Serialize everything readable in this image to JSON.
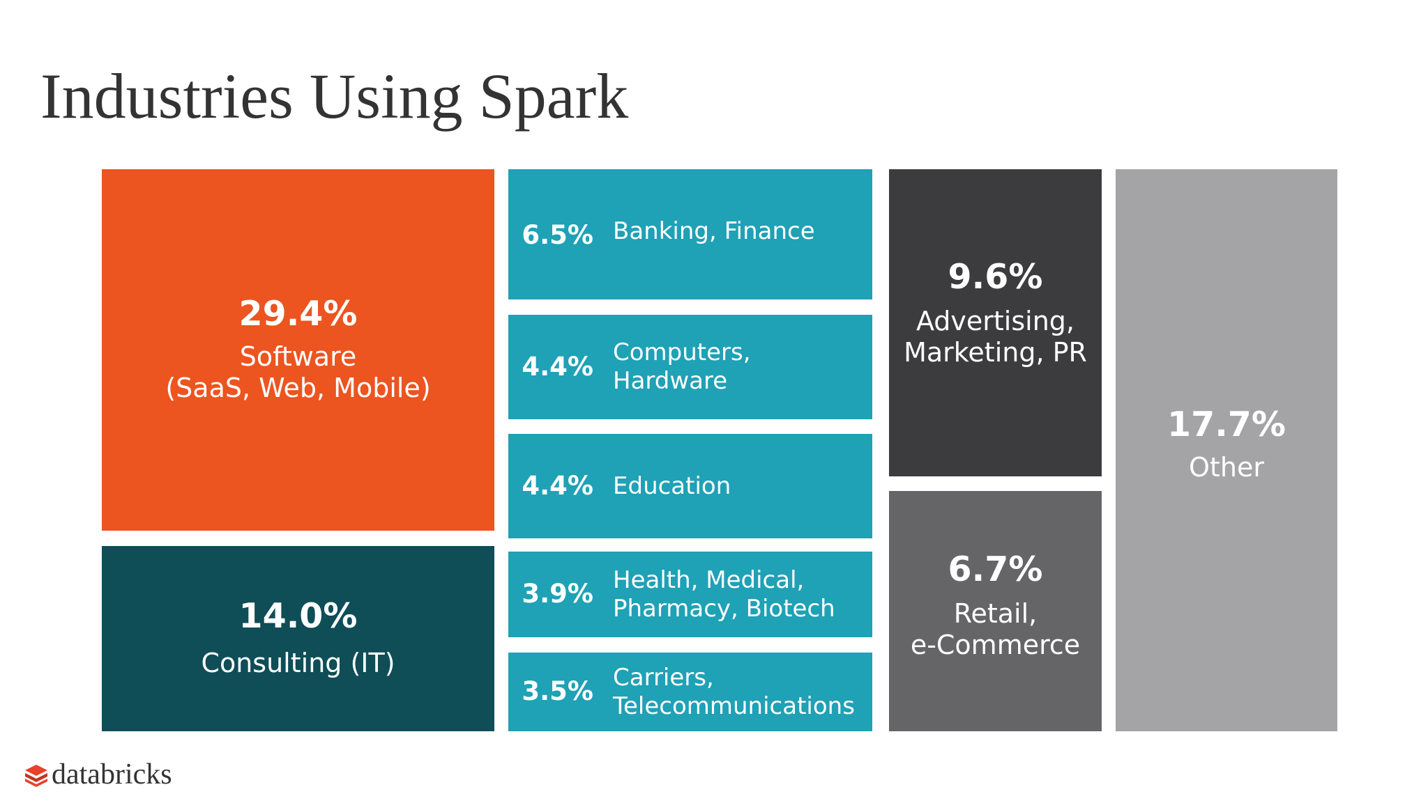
{
  "title": "Industries Using Spark",
  "logo_text": "databricks",
  "logo_mark": "databricks-logo-icon",
  "colors": {
    "software": "#ec5420",
    "consulting": "#0f4d57",
    "teal": "#1fa1b6",
    "advertising": "#3c3c3e",
    "retail": "#656466",
    "other": "#a4a3a5"
  },
  "chart_data": {
    "type": "treemap",
    "title": "Industries Using Spark",
    "unit": "%",
    "items": [
      {
        "value": "29.4%",
        "label": "Software",
        "label2": "(SaaS, Web, Mobile)"
      },
      {
        "value": "14.0%",
        "label": "Consulting (IT)"
      },
      {
        "value": "6.5%",
        "label": "Banking, Finance"
      },
      {
        "value": "4.4%",
        "label": "Computers, Hardware"
      },
      {
        "value": "4.4%",
        "label": "Education"
      },
      {
        "value": "3.9%",
        "label": "Health, Medical,",
        "label2": "Pharmacy, Biotech"
      },
      {
        "value": "3.5%",
        "label": "Carriers,",
        "label2": "Telecommunications"
      },
      {
        "value": "9.6%",
        "label": "Advertising,",
        "label2": "Marketing, PR"
      },
      {
        "value": "6.7%",
        "label": "Retail,",
        "label2": "e-Commerce"
      },
      {
        "value": "17.7%",
        "label": "Other"
      }
    ]
  }
}
